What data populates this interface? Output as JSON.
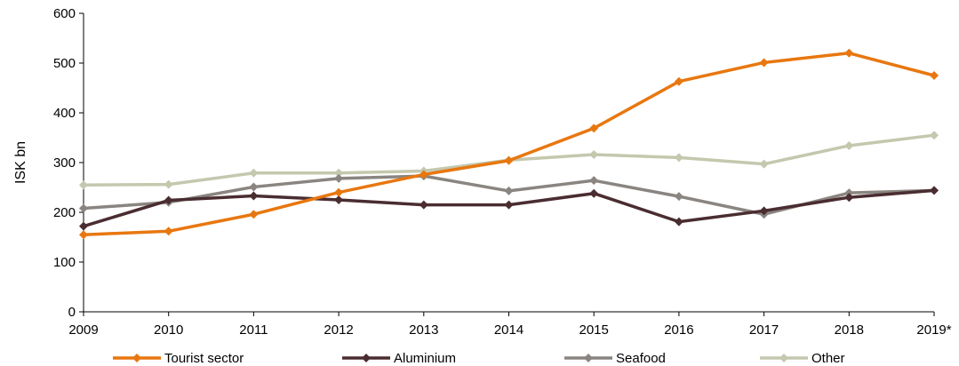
{
  "chart_data": {
    "type": "line",
    "xlabel": "",
    "ylabel": "ISK bn",
    "categories": [
      "2009",
      "2010",
      "2011",
      "2012",
      "2013",
      "2014",
      "2015",
      "2016",
      "2017",
      "2018",
      "2019*"
    ],
    "ylim": [
      0,
      600
    ],
    "yticks": [
      0,
      100,
      200,
      300,
      400,
      500,
      600
    ],
    "grid": false,
    "legend_position": "bottom",
    "series": [
      {
        "name": "Tourist sector",
        "color": "#E8770F",
        "values": [
          155,
          162,
          196,
          240,
          276,
          304,
          369,
          463,
          501,
          520,
          475
        ]
      },
      {
        "name": "Aluminium",
        "color": "#4A2D31",
        "values": [
          172,
          224,
          233,
          225,
          215,
          215,
          238,
          181,
          203,
          230,
          244
        ]
      },
      {
        "name": "Seafood",
        "color": "#8A8580",
        "values": [
          208,
          220,
          251,
          268,
          273,
          243,
          264,
          232,
          196,
          239,
          244
        ]
      },
      {
        "name": "Other",
        "color": "#C4C8AE",
        "values": [
          255,
          256,
          279,
          279,
          283,
          305,
          316,
          310,
          297,
          334,
          355
        ]
      }
    ]
  }
}
